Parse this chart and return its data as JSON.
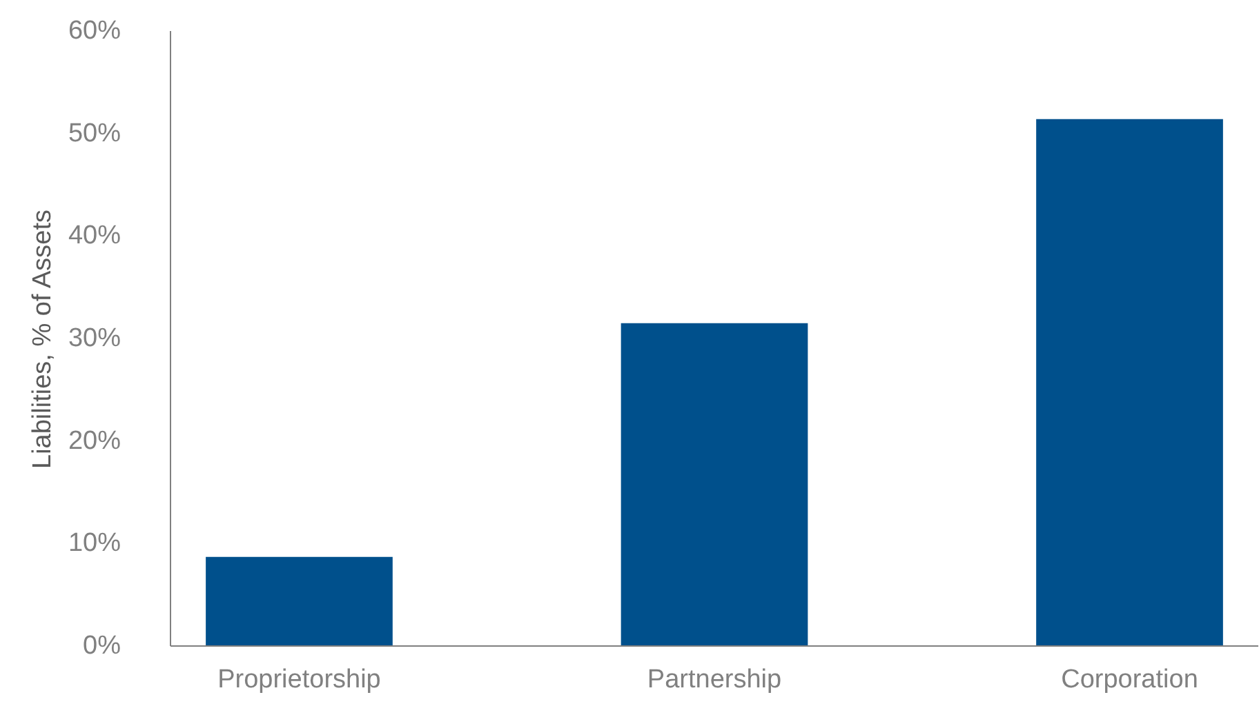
{
  "chart_data": {
    "type": "bar",
    "ylabel": "Liabilities, % of Assets",
    "categories": [
      "Proprietorship",
      "Partnership",
      "Corporation"
    ],
    "values": [
      8.7,
      31.5,
      51.4
    ],
    "color": "#00508c",
    "ylim": [
      0,
      60
    ],
    "yticks": [
      {
        "value": 0,
        "label": "0%"
      },
      {
        "value": 10,
        "label": "10%"
      },
      {
        "value": 20,
        "label": "20%"
      },
      {
        "value": 30,
        "label": "30%"
      },
      {
        "value": 40,
        "label": "40%"
      },
      {
        "value": 50,
        "label": "50%"
      },
      {
        "value": 60,
        "label": "60%"
      }
    ],
    "grid": false
  }
}
